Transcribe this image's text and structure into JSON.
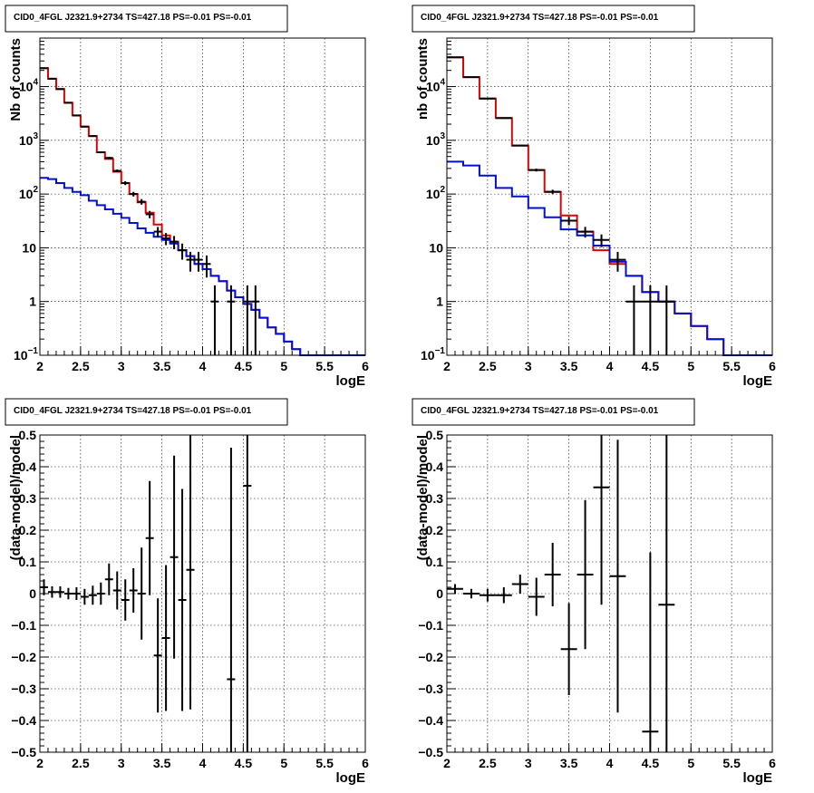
{
  "colors": {
    "data": "#000000",
    "model": "#e00000",
    "component": "#0010d0"
  },
  "chart_data": [
    {
      "type": "line",
      "title": "CID0_4FGL J2321.9+2734 TS=427.18 PS=-0.01 PS=-0.01",
      "xlabel": "logE",
      "ylabel": "Nb of counts",
      "xlim": [
        2,
        6
      ],
      "ylim": [
        0.1,
        80000
      ],
      "yscale": "log",
      "grid": true,
      "xticks": [
        "2",
        "2.5",
        "3",
        "3.5",
        "4",
        "4.5",
        "5",
        "5.5",
        "6"
      ],
      "yticks": [
        {
          "base": "10",
          "exp": "−1",
          "value": 0.1
        },
        {
          "base": "1",
          "exp": "",
          "value": 1
        },
        {
          "base": "10",
          "exp": "",
          "value": 10
        },
        {
          "base": "10",
          "exp": "2",
          "value": 100
        },
        {
          "base": "10",
          "exp": "3",
          "value": 1000
        },
        {
          "base": "10",
          "exp": "4",
          "value": 10000
        }
      ],
      "binwidth": 0.1,
      "series": [
        {
          "role": "model",
          "color": "#e00000",
          "x": [
            2.0,
            2.1,
            2.2,
            2.3,
            2.4,
            2.5,
            2.6,
            2.7,
            2.8,
            2.9,
            3.0,
            3.1,
            3.2,
            3.3,
            3.4,
            3.5,
            3.6,
            3.7,
            3.8,
            3.9,
            4.0,
            4.1,
            4.2,
            4.3,
            4.4,
            4.5,
            4.6,
            4.7,
            4.8,
            4.9,
            5.0,
            5.1,
            5.2,
            5.3,
            5.4,
            5.5,
            5.6,
            5.7,
            5.8,
            5.9
          ],
          "y": [
            22000,
            14000,
            9000,
            5000,
            2900,
            1800,
            1200,
            600,
            450,
            260,
            160,
            100,
            70,
            45,
            27,
            17,
            13,
            9,
            7,
            5,
            4,
            3,
            2.4,
            1.6,
            1.2,
            0.9,
            0.7,
            0.5,
            0.33,
            0.25,
            0.18,
            0.13,
            0.1,
            0.1,
            0.1,
            0.1,
            0.1,
            0.1,
            0.1,
            0.1
          ]
        },
        {
          "role": "component",
          "color": "#0010d0",
          "x": [
            2.0,
            2.1,
            2.2,
            2.3,
            2.4,
            2.5,
            2.6,
            2.7,
            2.8,
            2.9,
            3.0,
            3.1,
            3.2,
            3.3,
            3.4,
            3.5,
            3.6,
            3.7,
            3.8,
            3.9,
            4.0,
            4.1,
            4.2,
            4.3,
            4.4,
            4.5,
            4.6,
            4.7,
            4.8,
            4.9,
            5.0,
            5.1,
            5.2,
            5.3,
            5.4,
            5.5,
            5.6,
            5.7,
            5.8,
            5.9
          ],
          "y": [
            200,
            190,
            160,
            130,
            110,
            95,
            75,
            62,
            52,
            43,
            36,
            29,
            23,
            19,
            16,
            14,
            12,
            9,
            7,
            5,
            4,
            3,
            2.4,
            1.6,
            1.2,
            0.9,
            0.7,
            0.5,
            0.33,
            0.25,
            0.18,
            0.13,
            0.1,
            0.1,
            0.1,
            0.1,
            0.1,
            0.1,
            0.1,
            0.1
          ]
        },
        {
          "role": "data",
          "color": "#000000",
          "x": [
            2.05,
            2.15,
            2.25,
            2.35,
            2.45,
            2.55,
            2.65,
            2.75,
            2.85,
            2.95,
            3.05,
            3.15,
            3.25,
            3.35,
            3.45,
            3.55,
            3.65,
            3.75,
            3.85,
            3.95,
            4.05,
            4.15,
            4.35,
            4.55,
            4.65
          ],
          "y": [
            22000,
            14000,
            9000,
            5000,
            2900,
            1800,
            1200,
            600,
            470,
            270,
            160,
            100,
            72,
            42,
            20,
            15,
            13,
            9,
            6,
            6,
            5,
            1,
            1,
            1,
            1
          ],
          "yerr_low": [
            150,
            120,
            95,
            70,
            55,
            42,
            35,
            25,
            22,
            16,
            13,
            10,
            8.5,
            6.5,
            4.4,
            3.8,
            3.6,
            3,
            2.4,
            2.4,
            2.2,
            0.9,
            0.9,
            0.9,
            0.9
          ],
          "yerr_high": [
            150,
            120,
            95,
            70,
            55,
            42,
            35,
            25,
            22,
            16,
            13,
            10,
            8.5,
            6.5,
            4.4,
            3.8,
            3.6,
            3,
            2.4,
            2.4,
            2.2,
            1,
            1,
            1,
            1
          ]
        }
      ]
    },
    {
      "type": "line",
      "title": "CID0_4FGL J2321.9+2734 TS=427.18 PS=-0.01 PS=-0.01",
      "xlabel": "logE",
      "ylabel": "nb of counts",
      "xlim": [
        2,
        6
      ],
      "ylim": [
        0.1,
        80000
      ],
      "yscale": "log",
      "grid": true,
      "xticks": [
        "2",
        "2.5",
        "3",
        "3.5",
        "4",
        "4.5",
        "5",
        "5.5",
        "6"
      ],
      "yticks": [
        {
          "base": "10",
          "exp": "−1",
          "value": 0.1
        },
        {
          "base": "1",
          "exp": "",
          "value": 1
        },
        {
          "base": "10",
          "exp": "",
          "value": 10
        },
        {
          "base": "10",
          "exp": "2",
          "value": 100
        },
        {
          "base": "10",
          "exp": "3",
          "value": 1000
        },
        {
          "base": "10",
          "exp": "4",
          "value": 10000
        }
      ],
      "binwidth": 0.2,
      "series": [
        {
          "role": "model",
          "color": "#e00000",
          "x": [
            2.0,
            2.2,
            2.4,
            2.6,
            2.8,
            3.0,
            3.2,
            3.4,
            3.6,
            3.8,
            4.0,
            4.2,
            4.4,
            4.6,
            4.8,
            5.0,
            5.2,
            5.4,
            5.6,
            5.8
          ],
          "y": [
            35000,
            15000,
            6000,
            2600,
            800,
            280,
            110,
            40,
            20,
            9,
            5,
            3,
            1.5,
            1,
            0.6,
            0.35,
            0.2,
            0.1,
            0.1,
            0.1
          ]
        },
        {
          "role": "component",
          "color": "#0010d0",
          "x": [
            2.0,
            2.2,
            2.4,
            2.6,
            2.8,
            3.0,
            3.2,
            3.4,
            3.6,
            3.8,
            4.0,
            4.2,
            4.4,
            4.6,
            4.8,
            5.0,
            5.2,
            5.4,
            5.6,
            5.8
          ],
          "y": [
            400,
            340,
            220,
            130,
            90,
            55,
            37,
            22,
            17,
            11,
            5.5,
            3,
            1.5,
            1,
            0.6,
            0.35,
            0.2,
            0.1,
            0.1,
            0.1
          ]
        },
        {
          "role": "data",
          "color": "#000000",
          "x": [
            2.1,
            2.3,
            2.5,
            2.7,
            2.9,
            3.1,
            3.3,
            3.5,
            3.7,
            3.9,
            4.1,
            4.3,
            4.5,
            4.7
          ],
          "y": [
            35000,
            15000,
            6000,
            2600,
            800,
            280,
            110,
            32,
            20,
            14,
            6,
            1,
            1,
            1
          ],
          "yerr_low": [
            190,
            120,
            75,
            50,
            28,
            17,
            10.5,
            5.7,
            4.5,
            3.7,
            2.4,
            0.9,
            0.9,
            0.9
          ],
          "yerr_high": [
            190,
            120,
            75,
            50,
            28,
            17,
            10.5,
            5.7,
            4.5,
            3.7,
            2.4,
            1,
            1,
            1
          ]
        }
      ]
    },
    {
      "type": "scatter",
      "title": "CID0_4FGL J2321.9+2734 TS=427.18 PS=-0.01 PS=-0.01",
      "xlabel": "logE",
      "ylabel": "(data-model)/model",
      "xlim": [
        2,
        6
      ],
      "ylim": [
        -0.5,
        0.5
      ],
      "grid": true,
      "xticks": [
        "2",
        "2.5",
        "3",
        "3.5",
        "4",
        "4.5",
        "5",
        "5.5",
        "6"
      ],
      "yticks": [
        "−0.5",
        "−0.4",
        "−0.3",
        "−0.2",
        "−0.1",
        "0",
        "0.1",
        "0.2",
        "0.3",
        "0.4",
        "0.5"
      ],
      "binwidth": 0.1,
      "series": [
        {
          "role": "data",
          "color": "#000000",
          "x": [
            2.05,
            2.15,
            2.25,
            2.35,
            2.45,
            2.55,
            2.65,
            2.75,
            2.85,
            2.95,
            3.05,
            3.15,
            3.25,
            3.35,
            3.45,
            3.55,
            3.65,
            3.75,
            3.85,
            4.35,
            4.55
          ],
          "y": [
            0.02,
            0.005,
            0.005,
            0.0,
            0.0,
            -0.01,
            -0.005,
            0.0,
            0.045,
            0.01,
            -0.02,
            0.01,
            0.0,
            0.175,
            -0.195,
            -0.14,
            0.115,
            -0.02,
            0.075,
            -0.27,
            0.34
          ],
          "yerr": [
            0.025,
            0.018,
            0.018,
            0.018,
            0.02,
            0.025,
            0.03,
            0.035,
            0.05,
            0.06,
            0.065,
            0.07,
            0.145,
            0.18,
            0.18,
            0.23,
            0.32,
            0.35,
            0.44,
            0.73,
            1.0
          ]
        }
      ]
    },
    {
      "type": "scatter",
      "title": "CID0_4FGL J2321.9+2734 TS=427.18 PS=-0.01 PS=-0.01",
      "xlabel": "logE",
      "ylabel": "(data-model)/model",
      "xlim": [
        2,
        6
      ],
      "ylim": [
        -0.5,
        0.5
      ],
      "grid": true,
      "xticks": [
        "2",
        "2.5",
        "3",
        "3.5",
        "4",
        "4.5",
        "5",
        "5.5",
        "6"
      ],
      "yticks": [
        "−0.5",
        "−0.4",
        "−0.3",
        "−0.2",
        "−0.1",
        "0",
        "0.1",
        "0.2",
        "0.3",
        "0.4",
        "0.5"
      ],
      "binwidth": 0.2,
      "series": [
        {
          "role": "data",
          "color": "#000000",
          "x": [
            2.1,
            2.3,
            2.5,
            2.7,
            2.9,
            3.1,
            3.3,
            3.5,
            3.7,
            3.9,
            4.1,
            4.5,
            4.7
          ],
          "y": [
            0.015,
            0.0,
            -0.005,
            -0.005,
            0.03,
            -0.01,
            0.06,
            -0.175,
            0.06,
            0.335,
            0.055,
            -0.435,
            -0.035
          ],
          "yerr": [
            0.015,
            0.015,
            0.02,
            0.025,
            0.03,
            0.06,
            0.1,
            0.145,
            0.235,
            0.37,
            0.43,
            0.565,
            0.97
          ]
        }
      ]
    }
  ]
}
